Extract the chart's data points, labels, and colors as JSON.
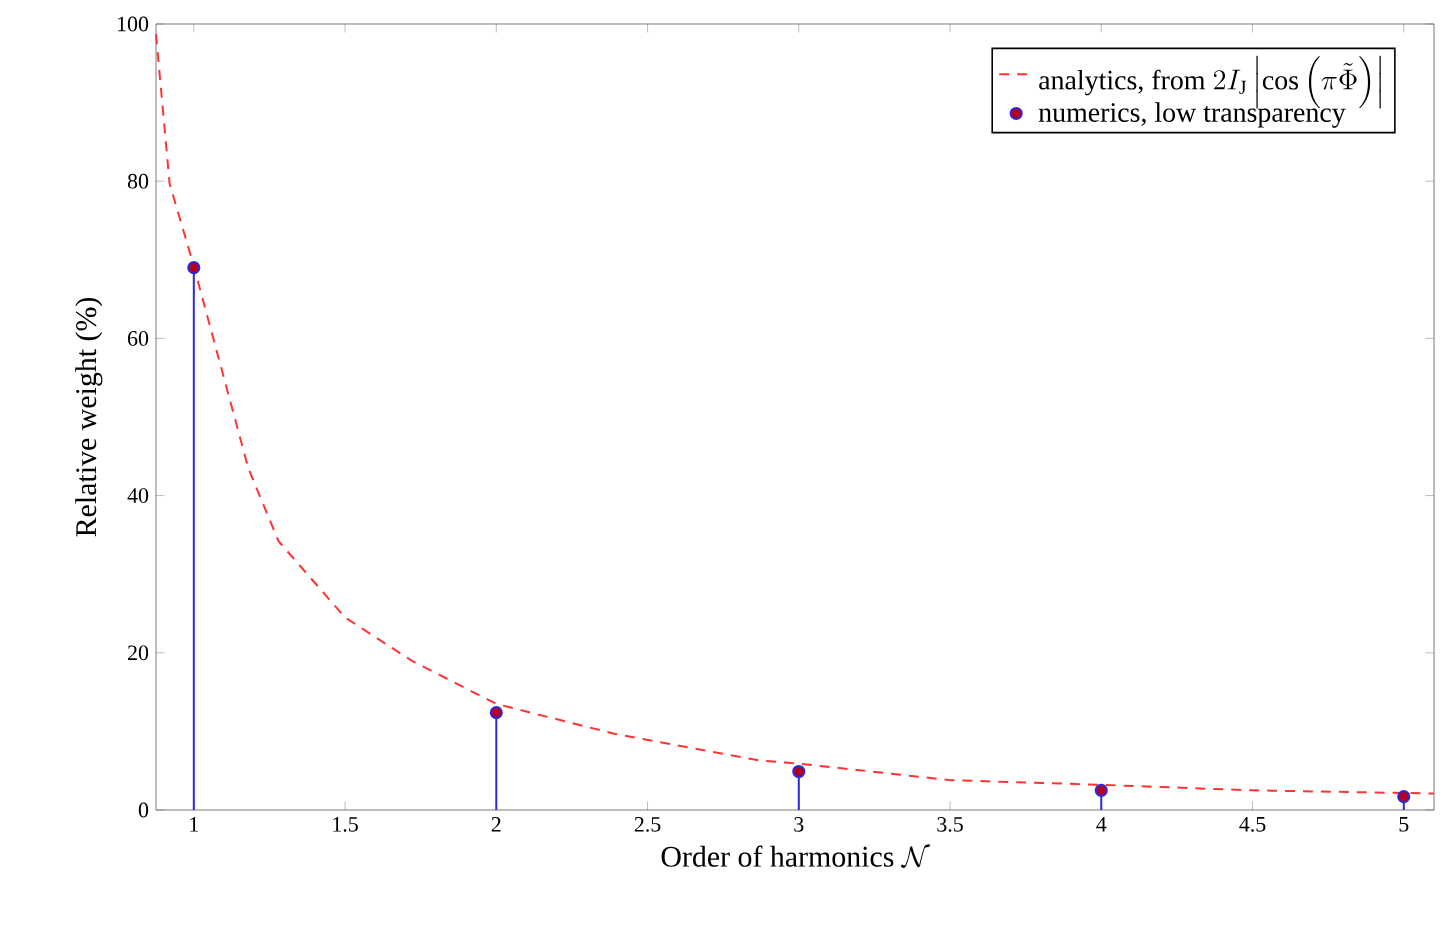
{
  "chart_data": {
    "type": "line",
    "xlabel": "\\text{Order of harmonics }\\mathcal{N}",
    "ylabel": "Relative weight (%)",
    "xlim": [
      0.875,
      5.1
    ],
    "ylim": [
      0,
      100
    ],
    "xticks": [
      1,
      1.5,
      2,
      2.5,
      3,
      3.5,
      4,
      4.5,
      5
    ],
    "yticks": [
      0,
      20,
      40,
      60,
      80,
      100
    ],
    "grid": false,
    "legend": "top right",
    "series": [
      {
        "name": "\\text{analytics, from }2I_{\\mathrm{J}}\\left|\\cos\\left(\\pi\\tilde{\\Phi}\\right)\\right|",
        "color": "#ff3333",
        "line_style": "dashed",
        "marker": "none",
        "x": [
          0.875,
          0.92,
          1.0,
          1.18,
          1.28,
          1.5,
          1.72,
          2.0,
          2.39,
          2.87,
          3.0,
          3.5,
          4.0,
          4.5,
          5.1
        ],
        "values": [
          98.7,
          79.7,
          69.2,
          43.5,
          34.2,
          24.5,
          19,
          13.5,
          9.7,
          6.3,
          5.9,
          3.8,
          3.2,
          2.5,
          2.1
        ]
      },
      {
        "name": "\\text{numerics, low transparency}",
        "type": "lollipop",
        "color": "#2b2bdd",
        "marker": "circle",
        "x": [
          1,
          2,
          3,
          4,
          5
        ],
        "values": [
          69,
          12.4,
          4.9,
          2.5,
          1.7
        ]
      }
    ]
  }
}
